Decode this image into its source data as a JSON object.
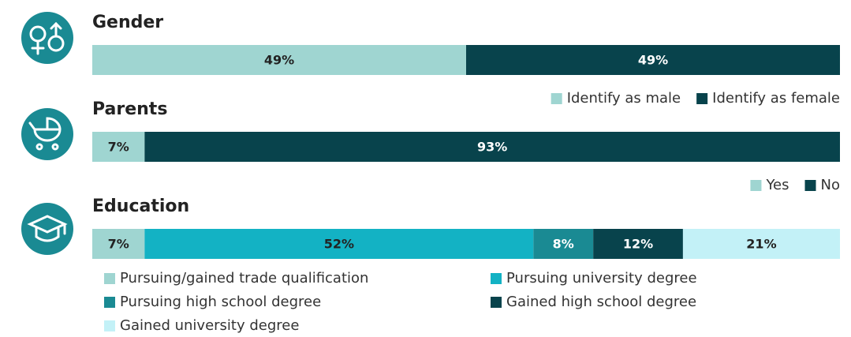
{
  "chart_data": [
    {
      "type": "stacked_bar",
      "title": "Gender",
      "legend": "below-right",
      "series": [
        {
          "name": "Identify as male",
          "color": "#9fd5d1",
          "values": [
            49
          ],
          "value_labels": [
            "49%"
          ]
        },
        {
          "name": "Identify as female",
          "color": "#08434c",
          "values": [
            49
          ],
          "value_labels": [
            "49%"
          ]
        }
      ]
    },
    {
      "type": "stacked_bar",
      "title": "Parents",
      "legend": "below-right",
      "series": [
        {
          "name": "Yes",
          "color": "#9fd5d1",
          "values": [
            7
          ],
          "value_labels": [
            "7%"
          ]
        },
        {
          "name": "No",
          "color": "#08434c",
          "values": [
            93
          ],
          "value_labels": [
            "93%"
          ]
        }
      ]
    },
    {
      "type": "stacked_bar",
      "title": "Education",
      "legend": "below-left",
      "series": [
        {
          "name": "Pursuing/gained trade qualification",
          "color": "#9fd5d1",
          "values": [
            7
          ],
          "value_labels": [
            "7%"
          ]
        },
        {
          "name": "Pursuing university degree",
          "color": "#13b2c4",
          "values": [
            52
          ],
          "value_labels": [
            "52%"
          ]
        },
        {
          "name": "Pursuing high school degree",
          "color": "#1a8a93",
          "values": [
            8
          ],
          "value_labels": [
            "8%"
          ]
        },
        {
          "name": "Gained high school degree",
          "color": "#08434c",
          "values": [
            12
          ],
          "value_labels": [
            "12%"
          ]
        },
        {
          "name": "Gained university degree",
          "color": "#c3f1f7",
          "values": [
            21
          ],
          "value_labels": [
            "21%"
          ]
        }
      ]
    }
  ]
}
